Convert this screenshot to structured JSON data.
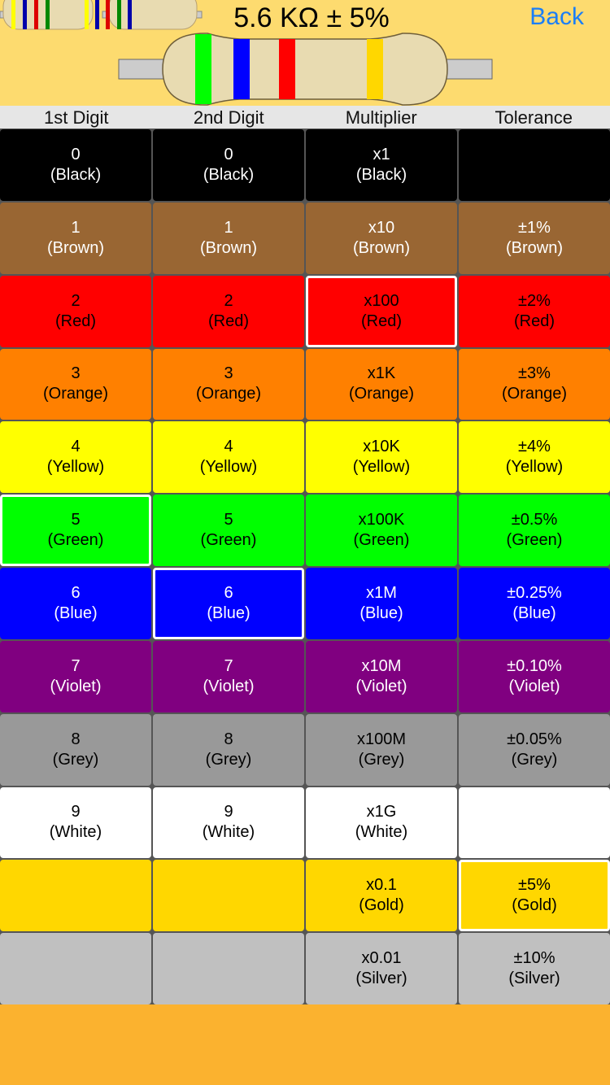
{
  "header": {
    "title": "5.6 KΩ ± 5%",
    "back_label": "Back",
    "background": "#FDDB6F"
  },
  "resistor": {
    "bands": [
      "#00FF00",
      "#0000FF",
      "#FF0000",
      "#FFD700"
    ],
    "body_color": "#E8DBB1"
  },
  "history_thumbnails": [
    {
      "bands": [
        "#FFFF00",
        "#0000AA",
        "#DD0000",
        "#008800"
      ]
    },
    {
      "bands": [
        "#FFFF00",
        "#0000AA",
        "#DD0000",
        "#008800",
        "#0000AA"
      ]
    }
  ],
  "columns": [
    "1st Digit",
    "2nd Digit",
    "Multiplier",
    "Tolerance"
  ],
  "selected": {
    "digit1": 5,
    "digit2": 6,
    "multiplier": 2,
    "tolerance": 10
  },
  "rows": [
    {
      "color": "#000000",
      "text": "#FFFFFF",
      "cells": [
        [
          "0",
          "(Black)"
        ],
        [
          "0",
          "(Black)"
        ],
        [
          "x1",
          "(Black)"
        ],
        null
      ]
    },
    {
      "color": "#996633",
      "text": "#FFFFFF",
      "cells": [
        [
          "1",
          "(Brown)"
        ],
        [
          "1",
          "(Brown)"
        ],
        [
          "x10",
          "(Brown)"
        ],
        [
          "±1%",
          "(Brown)"
        ]
      ]
    },
    {
      "color": "#FF0000",
      "text": "#000000",
      "cells": [
        [
          "2",
          "(Red)"
        ],
        [
          "2",
          "(Red)"
        ],
        [
          "x100",
          "(Red)"
        ],
        [
          "±2%",
          "(Red)"
        ]
      ]
    },
    {
      "color": "#FF8000",
      "text": "#000000",
      "cells": [
        [
          "3",
          "(Orange)"
        ],
        [
          "3",
          "(Orange)"
        ],
        [
          "x1K",
          "(Orange)"
        ],
        [
          "±3%",
          "(Orange)"
        ]
      ]
    },
    {
      "color": "#FFFF00",
      "text": "#000000",
      "cells": [
        [
          "4",
          "(Yellow)"
        ],
        [
          "4",
          "(Yellow)"
        ],
        [
          "x10K",
          "(Yellow)"
        ],
        [
          "±4%",
          "(Yellow)"
        ]
      ]
    },
    {
      "color": "#00FF00",
      "text": "#000000",
      "cells": [
        [
          "5",
          "(Green)"
        ],
        [
          "5",
          "(Green)"
        ],
        [
          "x100K",
          "(Green)"
        ],
        [
          "±0.5%",
          "(Green)"
        ]
      ]
    },
    {
      "color": "#0000FF",
      "text": "#FFFFFF",
      "cells": [
        [
          "6",
          "(Blue)"
        ],
        [
          "6",
          "(Blue)"
        ],
        [
          "x1M",
          "(Blue)"
        ],
        [
          "±0.25%",
          "(Blue)"
        ]
      ]
    },
    {
      "color": "#800080",
      "text": "#FFFFFF",
      "cells": [
        [
          "7",
          "(Violet)"
        ],
        [
          "7",
          "(Violet)"
        ],
        [
          "x10M",
          "(Violet)"
        ],
        [
          "±0.10%",
          "(Violet)"
        ]
      ]
    },
    {
      "color": "#999999",
      "text": "#000000",
      "cells": [
        [
          "8",
          "(Grey)"
        ],
        [
          "8",
          "(Grey)"
        ],
        [
          "x100M",
          "(Grey)"
        ],
        [
          "±0.05%",
          "(Grey)"
        ]
      ]
    },
    {
      "color": "#FFFFFF",
      "text": "#000000",
      "cells": [
        [
          "9",
          "(White)"
        ],
        [
          "9",
          "(White)"
        ],
        [
          "x1G",
          "(White)"
        ],
        null
      ]
    },
    {
      "color": "#FFD700",
      "text": "#000000",
      "cells": [
        null,
        null,
        [
          "x0.1",
          "(Gold)"
        ],
        [
          "±5%",
          "(Gold)"
        ]
      ]
    },
    {
      "color": "#C0C0C0",
      "text": "#000000",
      "cells": [
        null,
        null,
        [
          "x0.01",
          "(Silver)"
        ],
        [
          "±10%",
          "(Silver)"
        ]
      ]
    }
  ]
}
